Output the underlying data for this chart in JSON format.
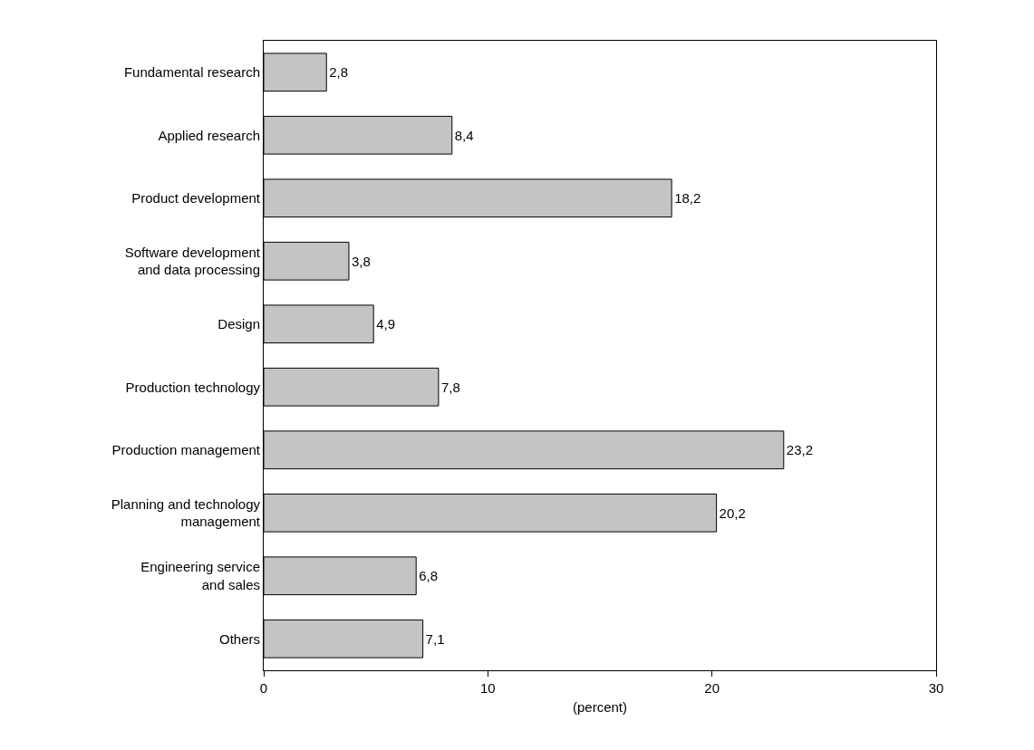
{
  "chart_data": {
    "type": "bar",
    "orientation": "horizontal",
    "xlabel": "(percent)",
    "categories": [
      "Fundamental research",
      "Applied research",
      "Product development",
      "Software development\nand data processing",
      "Design",
      "Production technology",
      "Production management",
      "Planning and technology\nmanagement",
      "Engineering service\nand sales",
      "Others"
    ],
    "values": [
      2.8,
      8.4,
      18.2,
      3.8,
      4.9,
      7.8,
      23.2,
      20.2,
      6.8,
      7.1
    ],
    "value_labels": [
      "2,8",
      "8,4",
      "18,2",
      "3,8",
      "4,9",
      "7,8",
      "23,2",
      "20,2",
      "6,8",
      "7,1"
    ],
    "color": "#c4c4c4",
    "xlim": [
      0,
      30
    ],
    "xticks": [
      0,
      10,
      20,
      30
    ],
    "legend": false
  }
}
